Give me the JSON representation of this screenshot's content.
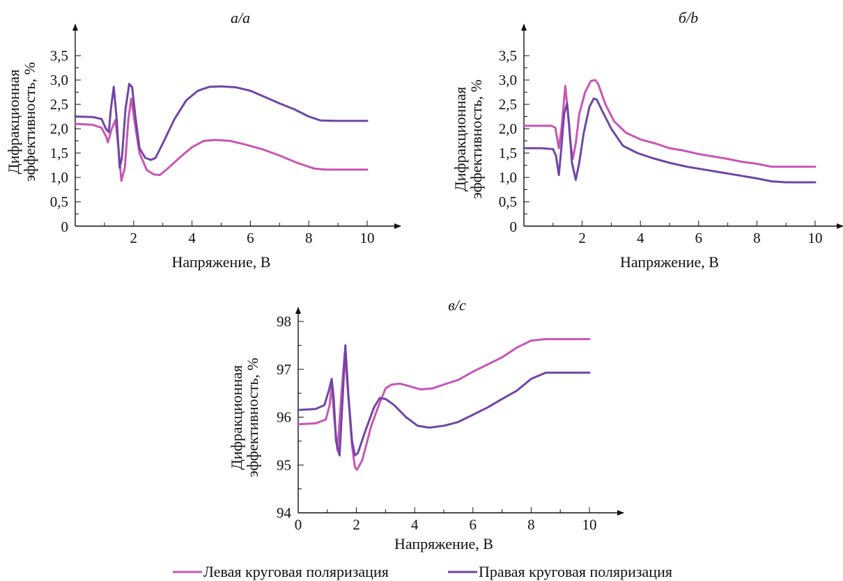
{
  "legend": [
    {
      "label": "Левая круговая поляризация",
      "color": "#c955b3"
    },
    {
      "label": "Правая круговая поляризация",
      "color": "#6f45a6"
    }
  ],
  "chart_data": [
    {
      "panel": "a",
      "type": "line",
      "title": "а/a",
      "xlabel": "Напряжение, В",
      "ylabel": [
        "Дифракционная",
        "эффективность, %"
      ],
      "xlim": [
        0,
        10
      ],
      "ylim": [
        0,
        3.5
      ],
      "xticks": [
        2,
        4,
        6,
        8,
        10
      ],
      "xtick_labels": [
        "2",
        "4",
        "6",
        "8",
        "10"
      ],
      "yticks": [
        0,
        0.5,
        1.0,
        1.5,
        2.0,
        2.5,
        3.0,
        3.5
      ],
      "ytick_labels": [
        "0",
        "0,5",
        "1,0",
        "1,5",
        "2,0",
        "2,5",
        "3,0",
        "3,5"
      ],
      "series": [
        {
          "name": "Левая круговая поляризация",
          "color": "#c955b3",
          "x": [
            0,
            0.6,
            0.9,
            1.05,
            1.12,
            1.25,
            1.38,
            1.5,
            1.58,
            1.7,
            1.82,
            1.92,
            2.02,
            2.2,
            2.45,
            2.7,
            2.9,
            3.2,
            3.6,
            4.0,
            4.4,
            4.8,
            5.3,
            5.8,
            6.4,
            7.0,
            7.6,
            8.2,
            8.6,
            9.2,
            10.0
          ],
          "y": [
            2.1,
            2.08,
            2.02,
            1.85,
            1.72,
            2.0,
            2.18,
            1.5,
            0.93,
            1.2,
            2.2,
            2.62,
            2.2,
            1.5,
            1.15,
            1.06,
            1.05,
            1.2,
            1.42,
            1.62,
            1.75,
            1.77,
            1.75,
            1.68,
            1.58,
            1.45,
            1.3,
            1.18,
            1.16,
            1.16,
            1.16
          ]
        },
        {
          "name": "Правая круговая поляризация",
          "color": "#6f45a6",
          "x": [
            0,
            0.6,
            0.9,
            1.05,
            1.15,
            1.22,
            1.32,
            1.42,
            1.52,
            1.6,
            1.72,
            1.85,
            1.95,
            2.05,
            2.2,
            2.4,
            2.6,
            2.75,
            3.0,
            3.4,
            3.8,
            4.2,
            4.6,
            5.0,
            5.5,
            6.0,
            6.5,
            7.0,
            7.5,
            8.0,
            8.4,
            9.0,
            10.0
          ],
          "y": [
            2.25,
            2.24,
            2.2,
            2.0,
            1.93,
            2.4,
            2.86,
            2.2,
            1.2,
            1.4,
            2.4,
            2.92,
            2.85,
            2.3,
            1.6,
            1.4,
            1.36,
            1.4,
            1.7,
            2.2,
            2.58,
            2.78,
            2.86,
            2.87,
            2.85,
            2.78,
            2.65,
            2.52,
            2.4,
            2.25,
            2.17,
            2.16,
            2.16
          ]
        }
      ]
    },
    {
      "panel": "b",
      "type": "line",
      "title": "б/b",
      "xlabel": "Напряжение, В",
      "ylabel": [
        "Дифракционная",
        "эффективность, %"
      ],
      "xlim": [
        0,
        10
      ],
      "ylim": [
        0,
        3.5
      ],
      "xticks": [
        2,
        4,
        6,
        8,
        10
      ],
      "xtick_labels": [
        "2",
        "4",
        "6",
        "8",
        "10"
      ],
      "yticks": [
        0,
        0.5,
        1.0,
        1.5,
        2.0,
        2.5,
        3.0,
        3.5
      ],
      "ytick_labels": [
        "0",
        "0,5",
        "1,0",
        "1,5",
        "2,0",
        "2,5",
        "3,0",
        "3,5"
      ],
      "series": [
        {
          "name": "Левая круговая поляризация",
          "color": "#c955b3",
          "x": [
            0,
            0.6,
            0.95,
            1.08,
            1.2,
            1.3,
            1.42,
            1.5,
            1.6,
            1.68,
            1.78,
            1.9,
            2.1,
            2.3,
            2.45,
            2.55,
            2.8,
            3.1,
            3.5,
            4.0,
            4.5,
            5.0,
            5.5,
            6.0,
            6.5,
            7.0,
            7.5,
            8.0,
            8.5,
            9.0,
            10.0
          ],
          "y": [
            2.06,
            2.06,
            2.06,
            2.02,
            1.6,
            2.05,
            2.88,
            2.4,
            1.7,
            1.38,
            1.7,
            2.3,
            2.75,
            2.98,
            3.0,
            2.92,
            2.5,
            2.15,
            1.92,
            1.78,
            1.7,
            1.6,
            1.55,
            1.48,
            1.43,
            1.38,
            1.32,
            1.28,
            1.22,
            1.22,
            1.22
          ]
        },
        {
          "name": "Правая круговая поляризация",
          "color": "#6f45a6",
          "x": [
            0,
            0.6,
            1.0,
            1.1,
            1.2,
            1.3,
            1.38,
            1.48,
            1.55,
            1.65,
            1.78,
            1.9,
            2.05,
            2.25,
            2.4,
            2.5,
            2.7,
            3.0,
            3.4,
            3.9,
            4.4,
            5.0,
            5.6,
            6.2,
            6.8,
            7.4,
            8.0,
            8.5,
            9.0,
            10.0
          ],
          "y": [
            1.6,
            1.6,
            1.58,
            1.45,
            1.05,
            1.7,
            2.3,
            2.52,
            2.1,
            1.3,
            0.95,
            1.3,
            1.9,
            2.45,
            2.62,
            2.6,
            2.35,
            2.0,
            1.65,
            1.5,
            1.4,
            1.3,
            1.22,
            1.16,
            1.1,
            1.04,
            0.98,
            0.92,
            0.9,
            0.9
          ]
        }
      ]
    },
    {
      "panel": "c",
      "type": "line",
      "title": "в/c",
      "xlabel": "Напряжение, В",
      "ylabel": [
        "Дифракционная",
        "эффективность, %"
      ],
      "xlim": [
        0,
        10
      ],
      "ylim": [
        94,
        98.5
      ],
      "xticks": [
        0,
        2,
        4,
        6,
        8,
        10
      ],
      "xtick_labels": [
        "0",
        "2",
        "4",
        "6",
        "8",
        "10"
      ],
      "yticks": [
        94,
        95,
        96,
        97,
        98
      ],
      "ytick_labels": [
        "94",
        "95",
        "96",
        "97",
        "98"
      ],
      "series": [
        {
          "name": "Левая круговая поляризация",
          "color": "#c955b3",
          "x": [
            0,
            0.6,
            0.95,
            1.08,
            1.15,
            1.25,
            1.35,
            1.5,
            1.6,
            1.7,
            1.85,
            1.95,
            2.02,
            2.2,
            2.5,
            2.8,
            3.0,
            3.2,
            3.5,
            3.8,
            4.2,
            4.6,
            5.0,
            5.5,
            6.0,
            6.5,
            7.0,
            7.5,
            8.0,
            8.5,
            9.0,
            10.0
          ],
          "y": [
            95.85,
            95.87,
            95.95,
            96.25,
            96.65,
            95.9,
            95.3,
            96.6,
            97.35,
            96.6,
            95.4,
            94.95,
            94.9,
            95.1,
            95.8,
            96.3,
            96.6,
            96.68,
            96.7,
            96.65,
            96.58,
            96.6,
            96.68,
            96.78,
            96.95,
            97.1,
            97.25,
            97.45,
            97.6,
            97.63,
            97.63,
            97.63
          ]
        },
        {
          "name": "Правая круговая поляризация",
          "color": "#6f45a6",
          "x": [
            0,
            0.6,
            0.9,
            1.05,
            1.15,
            1.22,
            1.3,
            1.42,
            1.52,
            1.62,
            1.72,
            1.85,
            1.95,
            2.05,
            2.3,
            2.6,
            2.8,
            3.0,
            3.3,
            3.7,
            4.1,
            4.5,
            5.0,
            5.5,
            6.0,
            6.5,
            7.0,
            7.5,
            8.0,
            8.5,
            9.0,
            10.0
          ],
          "y": [
            96.15,
            96.17,
            96.25,
            96.55,
            96.8,
            96.4,
            95.5,
            95.2,
            96.3,
            97.5,
            96.5,
            95.5,
            95.2,
            95.25,
            95.7,
            96.2,
            96.4,
            96.38,
            96.25,
            96.0,
            95.82,
            95.78,
            95.82,
            95.9,
            96.05,
            96.2,
            96.38,
            96.55,
            96.8,
            96.93,
            96.93,
            96.93
          ]
        }
      ]
    }
  ]
}
